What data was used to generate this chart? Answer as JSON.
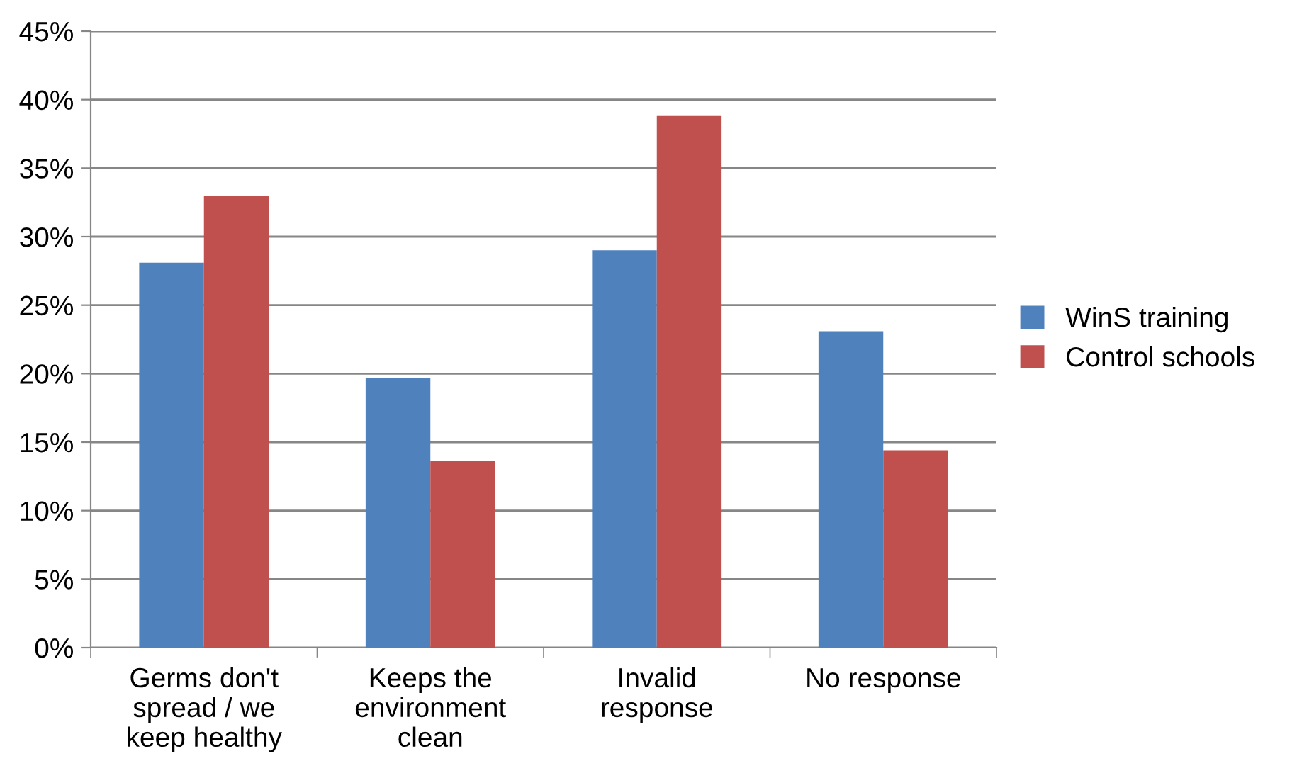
{
  "chart_data": {
    "type": "bar",
    "categories": [
      "Germs don't\nspread / we\nkeep healthy",
      "Keeps the\nenvironment\nclean",
      "Invalid\nresponse",
      "No response"
    ],
    "series": [
      {
        "name": "WinS training",
        "color": "#4f81bd",
        "values": [
          28.1,
          19.7,
          29.0,
          23.1
        ]
      },
      {
        "name": "Control schools",
        "color": "#c0504d",
        "values": [
          33.0,
          13.6,
          38.8,
          14.4
        ]
      }
    ],
    "ylim": [
      0,
      45
    ],
    "yticks": [
      {
        "value": 0,
        "label": "0%"
      },
      {
        "value": 5,
        "label": "5%"
      },
      {
        "value": 10,
        "label": "10%"
      },
      {
        "value": 15,
        "label": "15%"
      },
      {
        "value": 20,
        "label": "20%"
      },
      {
        "value": 25,
        "label": "25%"
      },
      {
        "value": 30,
        "label": "30%"
      },
      {
        "value": 35,
        "label": "35%"
      },
      {
        "value": 40,
        "label": "40%"
      },
      {
        "value": 45,
        "label": "45%"
      }
    ],
    "grid": "y",
    "legend": "right"
  }
}
